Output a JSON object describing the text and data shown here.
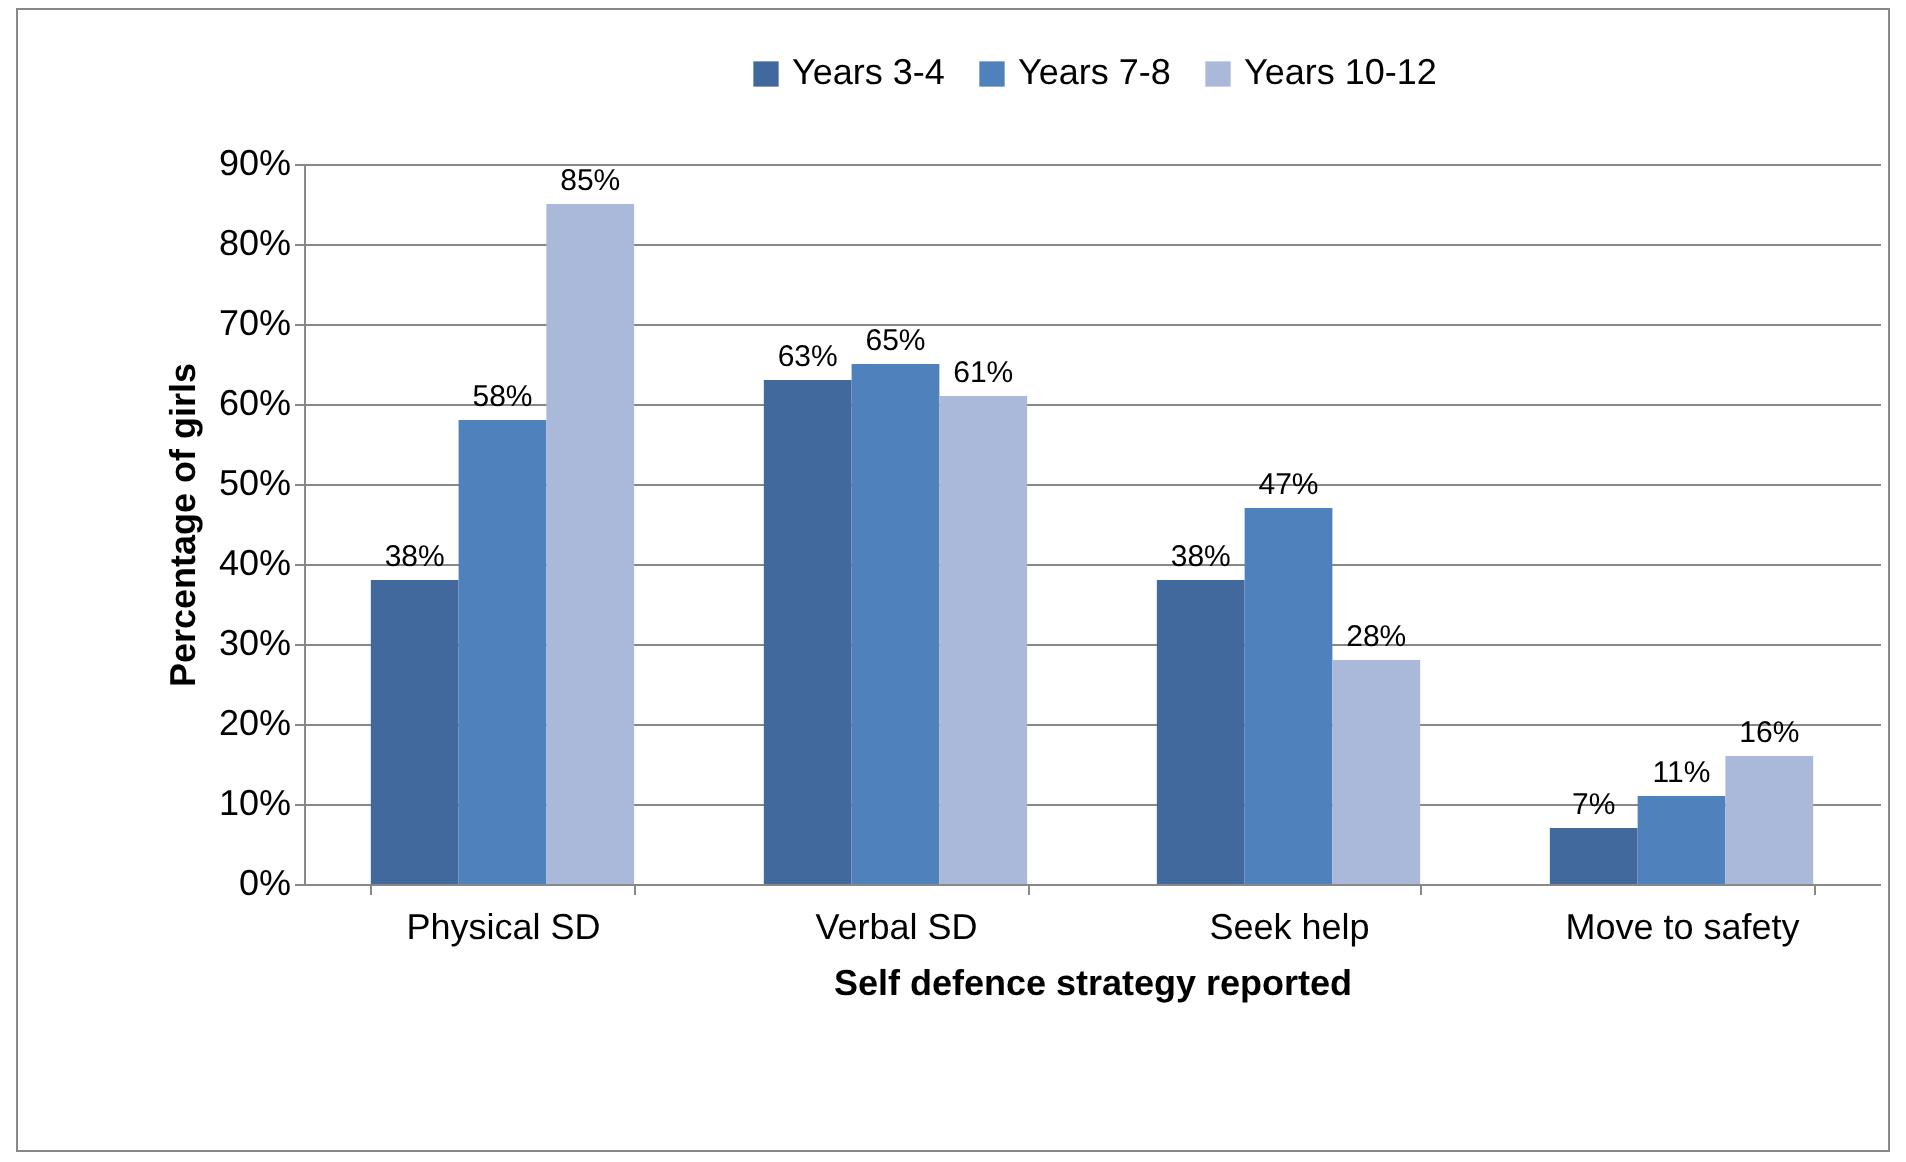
{
  "chart_data": {
    "type": "bar",
    "xlabel": "Self defence strategy reported",
    "ylabel": "Percentage of girls",
    "categories": [
      "Physical SD",
      "Verbal SD",
      "Seek help",
      "Move to safety"
    ],
    "series": [
      {
        "name": "Years 3-4",
        "color": "#41699d",
        "values": [
          38,
          63,
          38,
          7
        ],
        "value_labels": [
          "38%",
          "63%",
          "38%",
          "7%"
        ]
      },
      {
        "name": "Years 7-8",
        "color": "#4f81bd",
        "values": [
          58,
          65,
          47,
          11
        ],
        "value_labels": [
          "58%",
          "65%",
          "47%",
          "11%"
        ]
      },
      {
        "name": "Years 10-12",
        "color": "#aab9d9",
        "values": [
          85,
          61,
          28,
          16
        ],
        "value_labels": [
          "85%",
          "61%",
          "28%",
          "16%"
        ]
      }
    ],
    "ylim": [
      0,
      90
    ],
    "yticks": [
      {
        "value": 0,
        "label": "0%"
      },
      {
        "value": 10,
        "label": "10%"
      },
      {
        "value": 20,
        "label": "20%"
      },
      {
        "value": 30,
        "label": "30%"
      },
      {
        "value": 40,
        "label": "40%"
      },
      {
        "value": 50,
        "label": "50%"
      },
      {
        "value": 60,
        "label": "60%"
      },
      {
        "value": 70,
        "label": "70%"
      },
      {
        "value": 80,
        "label": "80%"
      },
      {
        "value": 90,
        "label": "90%"
      }
    ],
    "grid": "y",
    "legend": "top"
  }
}
